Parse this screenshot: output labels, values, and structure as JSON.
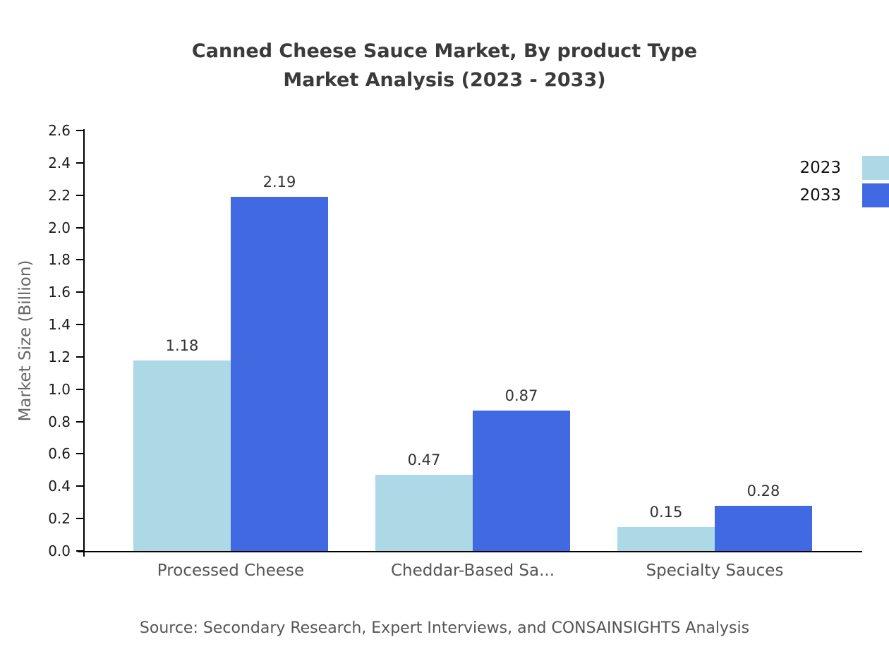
{
  "title": {
    "line1": "Canned Cheese Sauce Market, By product Type",
    "line2": "Market Analysis (2023 - 2033)"
  },
  "source": "Source: Secondary Research, Expert Interviews, and CONSAINSIGHTS Analysis",
  "chart_data": {
    "type": "bar",
    "categories": [
      "Processed Cheese",
      "Cheddar-Based Sa...",
      "Specialty Sauces"
    ],
    "series": [
      {
        "name": "2023",
        "color": "#add8e6",
        "values": [
          1.18,
          0.47,
          0.15
        ]
      },
      {
        "name": "2033",
        "color": "#4169e1",
        "values": [
          2.19,
          0.87,
          0.28
        ]
      }
    ],
    "title": "Canned Cheese Sauce Market, By product Type Market Analysis (2023 - 2033)",
    "xlabel": "",
    "ylabel": "Market Size (Billion)",
    "ylim": [
      0,
      2.6
    ],
    "ytick_step": 0.2,
    "grid": false,
    "legend_position": "top-right"
  }
}
